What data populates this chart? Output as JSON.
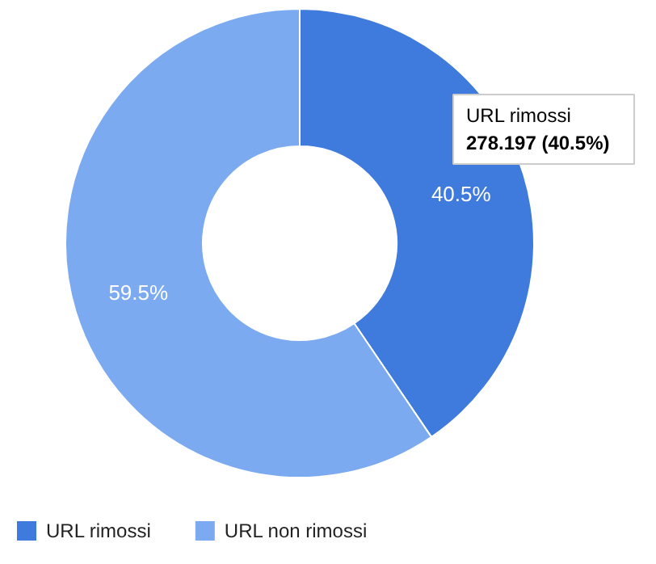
{
  "chart_data": {
    "type": "donut",
    "categories": [
      "URL rimossi",
      "URL non rimossi"
    ],
    "values": [
      40.5,
      59.5
    ],
    "colors": [
      "#3f7bdc",
      "#7baaf0"
    ],
    "value_labels": [
      "40.5%",
      "59.5%"
    ],
    "annotations": [
      "URL rimossi",
      "278.197 (40.5%)"
    ],
    "legend": "bottom"
  }
}
